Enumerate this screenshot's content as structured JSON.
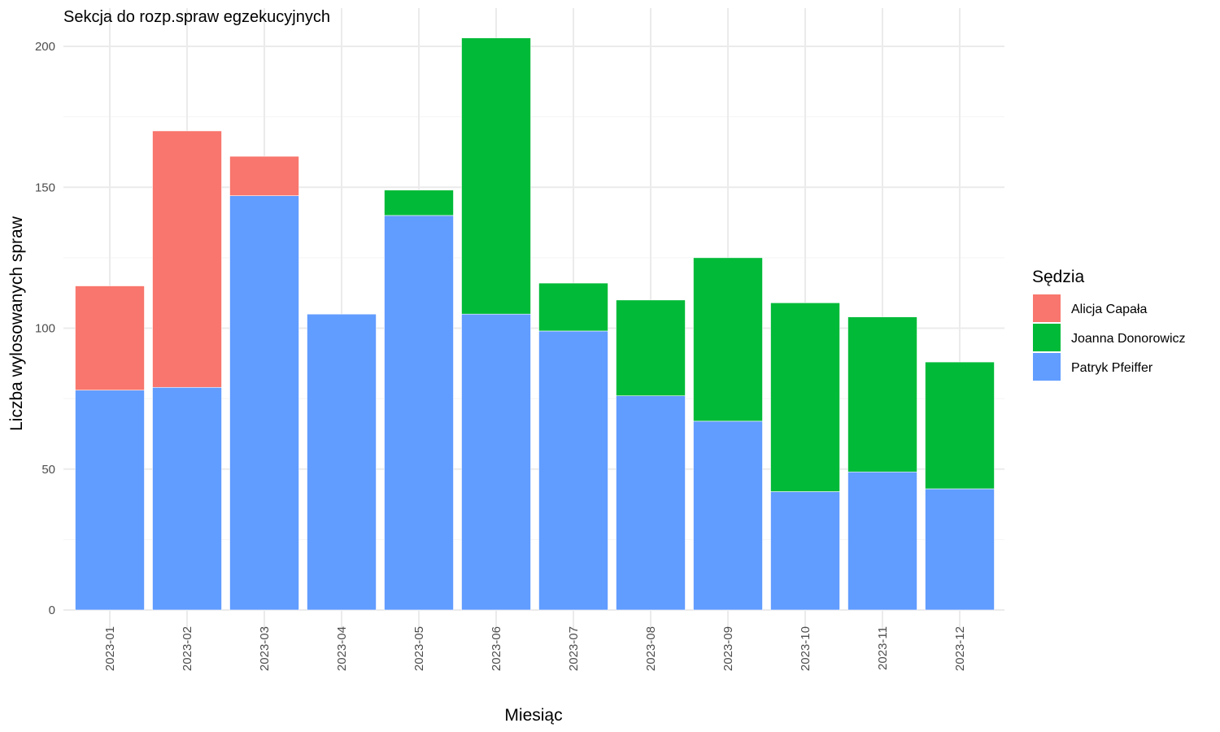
{
  "chart_data": {
    "type": "bar",
    "stacked": true,
    "title": "Sekcja do rozp.spraw egzekucyjnych",
    "xlabel": "Miesiąc",
    "ylabel": "Liczba wylosowanych spraw",
    "ylim": [
      0,
      210
    ],
    "yticks": [
      0,
      50,
      100,
      150,
      200
    ],
    "grid": true,
    "legend_position": "right",
    "legend_title": "Sędzia",
    "categories": [
      "2023-01",
      "2023-02",
      "2023-03",
      "2023-04",
      "2023-05",
      "2023-06",
      "2023-07",
      "2023-08",
      "2023-09",
      "2023-10",
      "2023-11",
      "2023-12"
    ],
    "series": [
      {
        "name": "Alicja Capała",
        "color": "#F8766D",
        "values": [
          37,
          91,
          14,
          0,
          0,
          0,
          0,
          0,
          0,
          0,
          0,
          0
        ]
      },
      {
        "name": "Joanna Donorowicz",
        "color": "#00BA38",
        "values": [
          0,
          0,
          0,
          0,
          9,
          98,
          17,
          34,
          58,
          67,
          55,
          45
        ]
      },
      {
        "name": "Patryk Pfeiffer",
        "color": "#619CFF",
        "values": [
          78,
          79,
          147,
          105,
          140,
          105,
          99,
          76,
          67,
          42,
          49,
          43
        ]
      }
    ]
  }
}
